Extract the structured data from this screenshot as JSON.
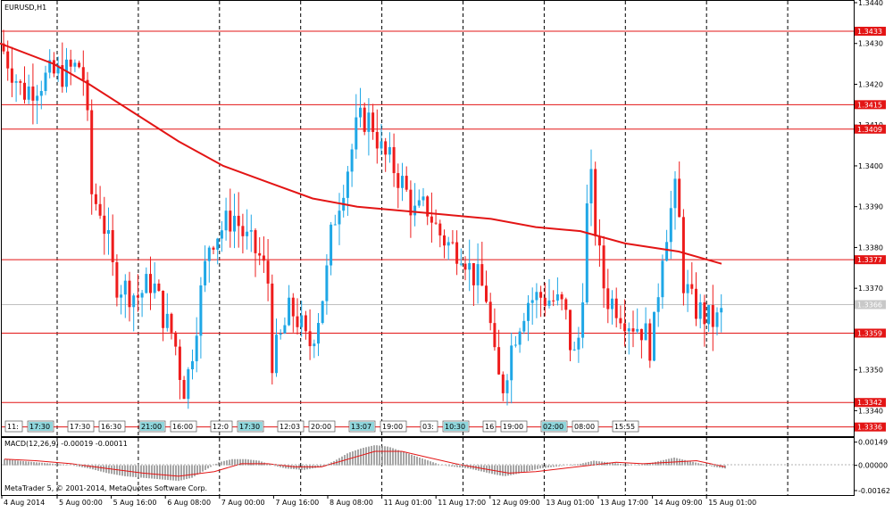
{
  "window": {
    "symbol_label": "EURUSD,H1"
  },
  "macd": {
    "label": "MACD(12,26,9) -0.00019 -0.00011",
    "ticks": [
      {
        "value": 0.00149,
        "label": "0.00149"
      },
      {
        "value": 0.0,
        "label": "0.00000"
      },
      {
        "value": -0.00162,
        "label": "-0.00162"
      }
    ],
    "range": [
      -0.00185,
      0.0017
    ]
  },
  "copyright": "MetaTrader 5, © 2001-2014, MetaQuotes Software Corp.",
  "colors": {
    "bull": "#1fa7e6",
    "bear": "#ee1c1c",
    "ma": "#e31515",
    "level": "#e31515",
    "grid": "#000000",
    "marker": "#8fd6dc",
    "signal": "#e31515",
    "hist": "#808080"
  },
  "chart_data": {
    "type": "candlestick",
    "title": "EURUSD,H1",
    "ylim": [
      1.33344,
      1.344
    ],
    "y_ticks": [
      "1.3440",
      "1.3430",
      "1.3420",
      "1.3410",
      "1.3400",
      "1.3390",
      "1.3380",
      "1.3370",
      "1.3350",
      "1.3340"
    ],
    "x_labels": [
      "4 Aug 2014",
      "5 Aug 00:00",
      "5 Aug 16:00",
      "6 Aug 08:00",
      "7 Aug 00:00",
      "7 Aug 16:00",
      "8 Aug 08:00",
      "11 Aug 01:00",
      "11 Aug 17:00",
      "12 Aug 09:00",
      "13 Aug 01:00",
      "13 Aug 17:00",
      "14 Aug 09:00",
      "15 Aug 01:00"
    ],
    "levels": [
      {
        "value": 1.3433,
        "label": "1.3433"
      },
      {
        "value": 1.3415,
        "label": "1.3415"
      },
      {
        "value": 1.3409,
        "label": "1.3409"
      },
      {
        "value": 1.3377,
        "label": "1.3377"
      },
      {
        "value": 1.3359,
        "label": "1.3359"
      },
      {
        "value": 1.3342,
        "label": "1.3342"
      },
      {
        "value": 1.3336,
        "label": "1.3336"
      }
    ],
    "current_price": {
      "value": 1.3366,
      "label": "1.3366"
    },
    "moving_average": {
      "name": "",
      "points": [
        [
          0,
          1.343
        ],
        [
          60,
          1.3425
        ],
        [
          100,
          1.342
        ],
        [
          150,
          1.3413
        ],
        [
          200,
          1.3406
        ],
        [
          250,
          1.34
        ],
        [
          300,
          1.3396
        ],
        [
          350,
          1.3392
        ],
        [
          400,
          1.339
        ],
        [
          450,
          1.3389
        ],
        [
          500,
          1.3388
        ],
        [
          550,
          1.3387
        ],
        [
          600,
          1.3385
        ],
        [
          650,
          1.3384
        ],
        [
          700,
          1.3381
        ],
        [
          760,
          1.3379
        ],
        [
          808,
          1.3376
        ]
      ]
    },
    "price_path": [
      [
        0,
        1.343
      ],
      [
        15,
        1.3423
      ],
      [
        25,
        1.3418
      ],
      [
        40,
        1.342
      ],
      [
        55,
        1.3422
      ],
      [
        75,
        1.3423
      ],
      [
        92,
        1.3425
      ],
      [
        98,
        1.341
      ],
      [
        103,
        1.3392
      ],
      [
        112,
        1.339
      ],
      [
        122,
        1.338
      ],
      [
        128,
        1.3372
      ],
      [
        140,
        1.337
      ],
      [
        155,
        1.3368
      ],
      [
        170,
        1.3372
      ],
      [
        185,
        1.3362
      ],
      [
        195,
        1.3358
      ],
      [
        205,
        1.3345
      ],
      [
        212,
        1.335
      ],
      [
        222,
        1.3365
      ],
      [
        235,
        1.3382
      ],
      [
        250,
        1.3385
      ],
      [
        262,
        1.3388
      ],
      [
        275,
        1.3382
      ],
      [
        290,
        1.3378
      ],
      [
        300,
        1.3372
      ],
      [
        305,
        1.3352
      ],
      [
        315,
        1.3358
      ],
      [
        325,
        1.3365
      ],
      [
        335,
        1.3362
      ],
      [
        345,
        1.3355
      ],
      [
        355,
        1.3362
      ],
      [
        365,
        1.3372
      ],
      [
        372,
        1.3385
      ],
      [
        380,
        1.3392
      ],
      [
        392,
        1.3402
      ],
      [
        400,
        1.341
      ],
      [
        410,
        1.3412
      ],
      [
        418,
        1.341
      ],
      [
        428,
        1.3403
      ],
      [
        440,
        1.34
      ],
      [
        452,
        1.3395
      ],
      [
        465,
        1.3388
      ],
      [
        478,
        1.339
      ],
      [
        490,
        1.3384
      ],
      [
        505,
        1.338
      ],
      [
        518,
        1.338
      ],
      [
        525,
        1.3375
      ],
      [
        535,
        1.3372
      ],
      [
        545,
        1.3368
      ],
      [
        555,
        1.335
      ],
      [
        562,
        1.3345
      ],
      [
        575,
        1.3358
      ],
      [
        590,
        1.3367
      ],
      [
        605,
        1.3368
      ],
      [
        620,
        1.3367
      ],
      [
        632,
        1.3365
      ],
      [
        642,
        1.3352
      ],
      [
        650,
        1.336
      ],
      [
        660,
        1.34
      ],
      [
        668,
        1.3382
      ],
      [
        678,
        1.3368
      ],
      [
        690,
        1.3366
      ],
      [
        705,
        1.3362
      ],
      [
        720,
        1.336
      ],
      [
        730,
        1.3355
      ],
      [
        742,
        1.338
      ],
      [
        750,
        1.3388
      ],
      [
        758,
        1.3395
      ],
      [
        765,
        1.3372
      ],
      [
        775,
        1.3366
      ],
      [
        785,
        1.3364
      ],
      [
        795,
        1.3362
      ],
      [
        805,
        1.3362
      ],
      [
        812,
        1.3366
      ]
    ],
    "macd_series": {
      "histogram": [
        [
          5,
          0.0004
        ],
        [
          20,
          0.0003
        ],
        [
          40,
          0.0002
        ],
        [
          60,
          0.0001
        ],
        [
          80,
          0.0
        ],
        [
          100,
          -0.0002
        ],
        [
          120,
          -0.0005
        ],
        [
          140,
          -0.0007
        ],
        [
          160,
          -0.0008
        ],
        [
          180,
          -0.0009
        ],
        [
          200,
          -0.001
        ],
        [
          215,
          -0.0008
        ],
        [
          230,
          -0.0003
        ],
        [
          245,
          0.0002
        ],
        [
          260,
          0.0004
        ],
        [
          275,
          0.0004
        ],
        [
          290,
          0.0003
        ],
        [
          305,
          0.0
        ],
        [
          320,
          -0.0002
        ],
        [
          340,
          -0.0003
        ],
        [
          360,
          -0.0001
        ],
        [
          375,
          0.0003
        ],
        [
          390,
          0.0008
        ],
        [
          405,
          0.0011
        ],
        [
          420,
          0.0013
        ],
        [
          435,
          0.0012
        ],
        [
          450,
          0.0009
        ],
        [
          465,
          0.0006
        ],
        [
          480,
          0.0003
        ],
        [
          495,
          0.0
        ],
        [
          510,
          -0.0001
        ],
        [
          525,
          -0.0002
        ],
        [
          540,
          -0.0004
        ],
        [
          555,
          -0.0006
        ],
        [
          565,
          -0.0007
        ],
        [
          575,
          -0.0006
        ],
        [
          590,
          -0.0004
        ],
        [
          605,
          -0.0002
        ],
        [
          620,
          -0.0001
        ],
        [
          635,
          0.0
        ],
        [
          650,
          0.0001
        ],
        [
          665,
          0.0003
        ],
        [
          680,
          0.0002
        ],
        [
          695,
          0.0001
        ],
        [
          710,
          0.0
        ],
        [
          725,
          0.0001
        ],
        [
          740,
          0.0003
        ],
        [
          755,
          0.0005
        ],
        [
          770,
          0.0003
        ],
        [
          785,
          0.0001
        ],
        [
          800,
          -0.0001
        ],
        [
          812,
          -0.0002
        ]
      ],
      "signal": [
        [
          5,
          0.0004
        ],
        [
          40,
          0.0003
        ],
        [
          80,
          0.0001
        ],
        [
          120,
          -0.0002
        ],
        [
          160,
          -0.0005
        ],
        [
          200,
          -0.0007
        ],
        [
          240,
          -0.0004
        ],
        [
          270,
          0.0001
        ],
        [
          300,
          0.0001
        ],
        [
          330,
          -0.0001
        ],
        [
          360,
          -0.0001
        ],
        [
          390,
          0.0004
        ],
        [
          420,
          0.0009
        ],
        [
          450,
          0.0009
        ],
        [
          480,
          0.0005
        ],
        [
          510,
          0.0001
        ],
        [
          540,
          -0.0002
        ],
        [
          570,
          -0.0005
        ],
        [
          600,
          -0.0004
        ],
        [
          630,
          -0.0002
        ],
        [
          660,
          0.0
        ],
        [
          690,
          0.0002
        ],
        [
          720,
          0.0001
        ],
        [
          750,
          0.0002
        ],
        [
          780,
          0.0003
        ],
        [
          812,
          -0.0001
        ]
      ]
    }
  },
  "time_markers": [
    "11:",
    "17:30",
    "17:30",
    "16:30",
    "21:00",
    "16:00",
    "12:0",
    "17:30",
    "12:03",
    "20:00",
    "13:07",
    "19:00",
    "03:",
    "10:30",
    "16",
    "19:00",
    "02:00",
    "08:00",
    "15:55"
  ]
}
